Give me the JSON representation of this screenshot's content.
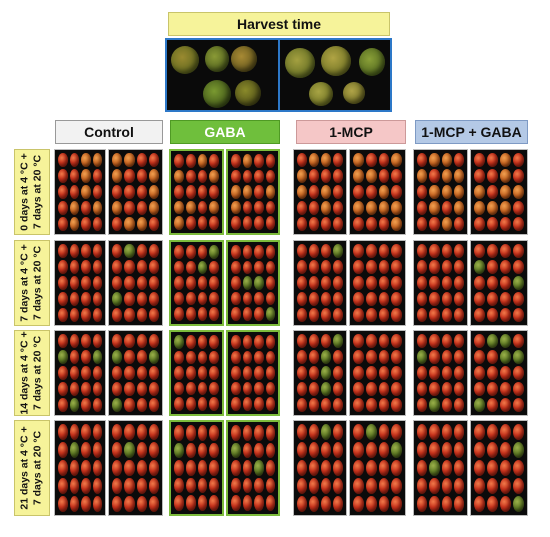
{
  "harvest": {
    "label": "Harvest time"
  },
  "treatments": [
    {
      "label": "Control",
      "color": "#f2f2f2"
    },
    {
      "label": "GABA",
      "color": "#6fbf3c"
    },
    {
      "label": "1-MCP",
      "color": "#f5c7c7"
    },
    {
      "label": "1-MCP + GABA",
      "color": "#b4c9e6"
    }
  ],
  "rows": [
    {
      "line1": "0 days at 4 °C +",
      "line2": "7 days at 20 °C"
    },
    {
      "line1": "7 days at 4 °C +",
      "line2": "7 days at 20 °C"
    },
    {
      "line1": "14 days at 4 °C +",
      "line2": "7 days at 20 °C"
    },
    {
      "line1": "21 days at 4 °C +",
      "line2": "7 days at 20 °C"
    }
  ]
}
